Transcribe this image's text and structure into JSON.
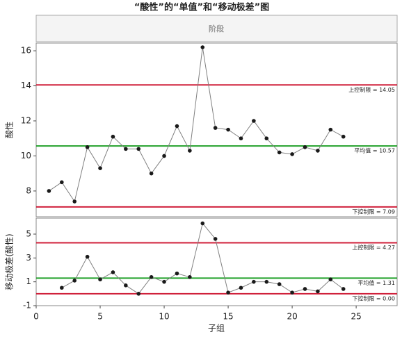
{
  "chart_data": {
    "type": "control",
    "title": "“酸性”的“单值”和“移动极差”图",
    "phase_label": "阶段",
    "xlabel": "子组",
    "x": [
      1,
      2,
      3,
      4,
      5,
      6,
      7,
      8,
      9,
      10,
      11,
      12,
      13,
      14,
      15,
      16,
      17,
      18,
      19,
      20,
      21,
      22,
      23,
      24
    ],
    "xlim": [
      0,
      28.2
    ],
    "xticks": [
      0,
      5,
      10,
      15,
      20,
      25
    ],
    "line_color": "#808080",
    "point_color": "#1a1a1a",
    "panels": [
      {
        "ylabel": "酸性",
        "ylim": [
          6.53,
          16.44
        ],
        "yticks": [
          8,
          10,
          12,
          14,
          16
        ],
        "values": [
          8.0,
          8.5,
          7.4,
          10.5,
          9.3,
          11.1,
          10.4,
          10.4,
          9.0,
          10.0,
          11.7,
          10.3,
          16.2,
          11.6,
          11.5,
          11.0,
          12.0,
          11.0,
          10.2,
          10.1,
          10.5,
          10.3,
          11.5,
          11.1
        ],
        "limits": [
          {
            "value": 14.05,
            "label": "上控制限 = 14.05",
            "color": "#d0213b"
          },
          {
            "value": 10.57,
            "label": "平均值 = 10.57",
            "color": "#22a12a"
          },
          {
            "value": 7.09,
            "label": "下控制限 = 7.09",
            "color": "#d0213b"
          }
        ]
      },
      {
        "ylabel": "移动极差(酸性)",
        "ylim": [
          -1,
          6.34
        ],
        "yticks": [
          -1,
          1,
          3,
          5
        ],
        "values": [
          null,
          0.5,
          1.1,
          3.1,
          1.2,
          1.8,
          0.7,
          0.0,
          1.4,
          1.0,
          1.7,
          1.4,
          5.9,
          4.6,
          0.1,
          0.5,
          1.0,
          1.0,
          0.8,
          0.1,
          0.4,
          0.2,
          1.2,
          0.4
        ],
        "limits": [
          {
            "value": 4.27,
            "label": "上控制限 = 4.27",
            "color": "#d0213b"
          },
          {
            "value": 1.31,
            "label": "平均值 = 1.31",
            "color": "#22a12a"
          },
          {
            "value": 0.0,
            "label": "下控制限 = 0.00",
            "color": "#d0213b"
          }
        ]
      }
    ]
  }
}
